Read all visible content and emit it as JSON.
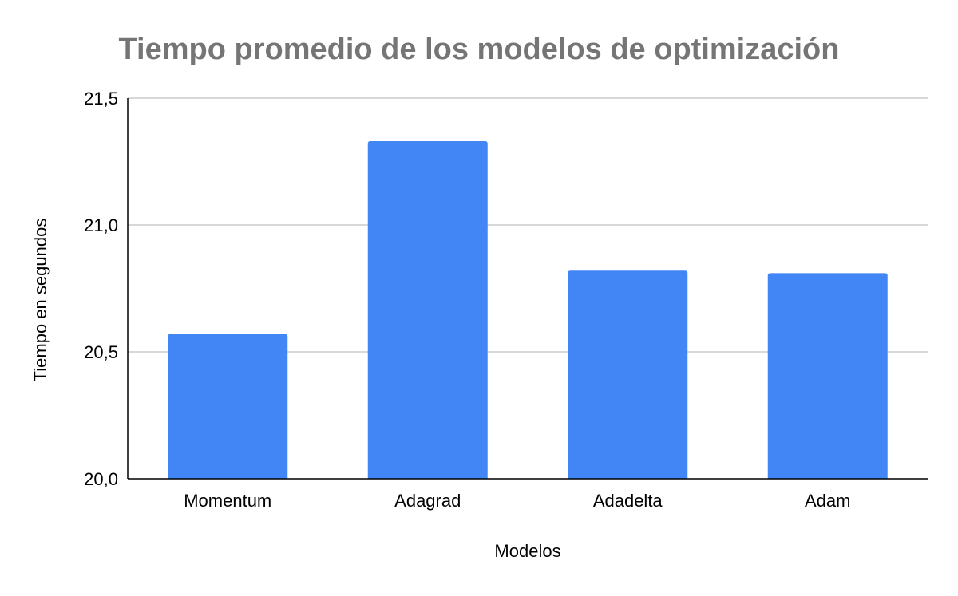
{
  "chart_data": {
    "type": "bar",
    "title": "Tiempo promedio de los modelos de optimización",
    "xlabel": "Modelos",
    "ylabel": "Tiempo en segundos",
    "categories": [
      "Momentum",
      "Adagrad",
      "Adadelta",
      "Adam"
    ],
    "values": [
      20.57,
      21.33,
      20.82,
      20.81
    ],
    "ylim": [
      20.0,
      21.5
    ],
    "yticks": [
      20.0,
      20.5,
      21.0,
      21.5
    ],
    "ytick_labels": [
      "20,0",
      "20,5",
      "21,0",
      "21,5"
    ],
    "grid": true,
    "legend": "none",
    "colors": {
      "bar": "#4285f4",
      "title": "#757575",
      "grid": "#cccccc",
      "axis": "#000000"
    }
  }
}
